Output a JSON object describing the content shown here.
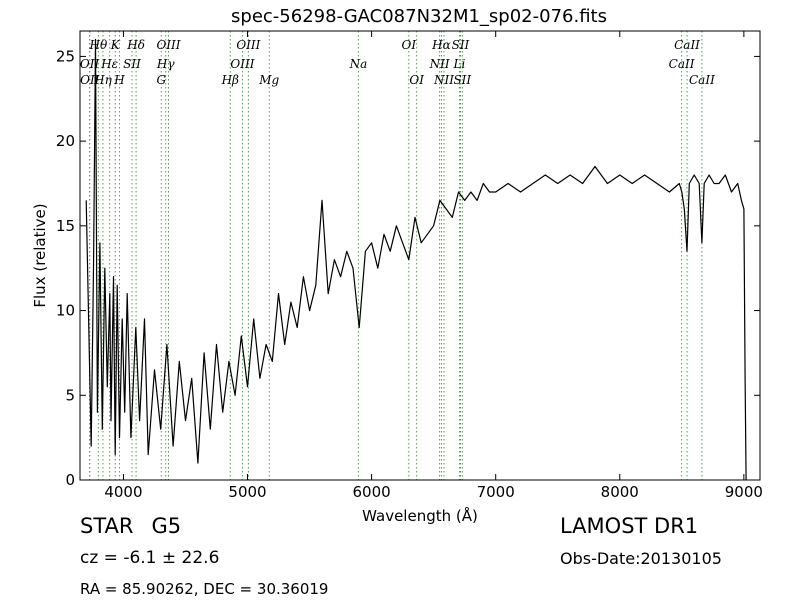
{
  "title": "spec-56298-GAC087N32M1_sp02-076.fits",
  "object_class": "STAR",
  "subclass": "G5",
  "survey": "LAMOST DR1",
  "cz_text": "cz = -6.1 ± 22.6",
  "obs_date": "Obs-Date:20130105",
  "radec": "RA = 85.90262, DEC = 30.36019",
  "chart_data": {
    "type": "line",
    "xlabel": "Wavelength (Å)",
    "ylabel": "Flux (relative)",
    "xlim": [
      3650,
      9130
    ],
    "ylim": [
      0,
      26.5
    ],
    "xticks": [
      4000,
      5000,
      6000,
      7000,
      8000,
      9000
    ],
    "yticks": [
      0,
      5,
      10,
      15,
      20,
      25
    ],
    "grid": false,
    "series": [
      {
        "color": "#000000",
        "x": [
          3700,
          3740,
          3760,
          3775,
          3790,
          3810,
          3830,
          3850,
          3870,
          3890,
          3900,
          3920,
          3934,
          3950,
          3968,
          3990,
          4010,
          4030,
          4060,
          4100,
          4130,
          4170,
          4200,
          4250,
          4300,
          4350,
          4400,
          4450,
          4500,
          4550,
          4600,
          4650,
          4700,
          4750,
          4800,
          4850,
          4900,
          4950,
          5000,
          5050,
          5100,
          5150,
          5200,
          5250,
          5300,
          5350,
          5400,
          5450,
          5500,
          5550,
          5600,
          5650,
          5700,
          5750,
          5800,
          5850,
          5900,
          5950,
          6000,
          6050,
          6100,
          6150,
          6200,
          6250,
          6300,
          6350,
          6400,
          6450,
          6500,
          6550,
          6600,
          6650,
          6700,
          6750,
          6800,
          6850,
          6900,
          6950,
          7000,
          7100,
          7200,
          7300,
          7400,
          7500,
          7600,
          7700,
          7800,
          7900,
          8000,
          8100,
          8200,
          8300,
          8400,
          8480,
          8500,
          8520,
          8542,
          8560,
          8600,
          8640,
          8662,
          8680,
          8720,
          8760,
          8800,
          8850,
          8900,
          8950,
          8980,
          9000,
          9010,
          9018
        ],
        "y": [
          16.5,
          2.0,
          13.0,
          26.0,
          4.0,
          14.0,
          3.0,
          12.5,
          5.5,
          11.0,
          3.5,
          12.0,
          1.5,
          11.5,
          2.5,
          9.5,
          4.0,
          11.0,
          2.5,
          9.0,
          3.5,
          9.5,
          1.5,
          6.5,
          3.0,
          8.0,
          2.0,
          7.0,
          3.5,
          6.0,
          1.0,
          7.5,
          3.0,
          8.0,
          4.0,
          7.0,
          5.0,
          8.5,
          5.5,
          9.5,
          6.0,
          8.0,
          7.0,
          11.0,
          8.0,
          10.5,
          9.0,
          12.0,
          10.0,
          11.5,
          16.5,
          11.0,
          13.0,
          12.0,
          13.5,
          12.5,
          9.0,
          13.5,
          14.0,
          12.5,
          14.5,
          13.5,
          15.0,
          14.0,
          13.0,
          15.5,
          14.0,
          14.5,
          15.0,
          16.5,
          16.0,
          15.5,
          17.0,
          16.5,
          17.0,
          16.5,
          17.5,
          17.0,
          17.0,
          17.5,
          17.0,
          17.5,
          18.0,
          17.5,
          18.0,
          17.5,
          18.5,
          17.5,
          18.0,
          17.5,
          18.0,
          17.5,
          17.0,
          17.5,
          17.0,
          16.0,
          13.5,
          17.5,
          18.0,
          17.5,
          14.0,
          17.5,
          18.0,
          17.5,
          17.5,
          18.0,
          17.0,
          17.5,
          16.5,
          16.0,
          6.0,
          0.0
        ]
      }
    ],
    "annotations": [
      {
        "label": "Hθ",
        "x": 3798,
        "row": 0
      },
      {
        "label": "OII",
        "x": 3727,
        "row": 1
      },
      {
        "label": "OII",
        "x": 3729,
        "row": 2
      },
      {
        "label": "Hη",
        "x": 3835,
        "row": 2
      },
      {
        "label": "K",
        "x": 3934,
        "row": 0
      },
      {
        "label": "Hε",
        "x": 3889,
        "row": 1
      },
      {
        "label": "SII",
        "x": 4069,
        "row": 1
      },
      {
        "label": "H",
        "x": 3968,
        "row": 2
      },
      {
        "label": "Hδ",
        "x": 4102,
        "row": 0
      },
      {
        "label": "OIII",
        "x": 4363,
        "row": 0
      },
      {
        "label": "Hγ",
        "x": 4341,
        "row": 1
      },
      {
        "label": "G",
        "x": 4305,
        "row": 2
      },
      {
        "label": "OIII",
        "x": 5007,
        "row": 0
      },
      {
        "label": "OIII",
        "x": 4959,
        "row": 1
      },
      {
        "label": "Hβ",
        "x": 4861,
        "row": 2
      },
      {
        "label": "Mg",
        "x": 5175,
        "row": 2
      },
      {
        "label": "Na",
        "x": 5894,
        "row": 1
      },
      {
        "label": "OI",
        "x": 6300,
        "row": 0
      },
      {
        "label": "OI",
        "x": 6363,
        "row": 2
      },
      {
        "label": "Hα",
        "x": 6563,
        "row": 0
      },
      {
        "label": "SII",
        "x": 6716,
        "row": 0
      },
      {
        "label": "NII",
        "x": 6548,
        "row": 1
      },
      {
        "label": "Li",
        "x": 6708,
        "row": 1
      },
      {
        "label": "NII",
        "x": 6583,
        "row": 2
      },
      {
        "label": "SII",
        "x": 6731,
        "row": 2
      },
      {
        "label": "CaII",
        "x": 8542,
        "row": 0
      },
      {
        "label": "CaII",
        "x": 8498,
        "row": 1
      },
      {
        "label": "CaII",
        "x": 8662,
        "row": 2
      }
    ]
  }
}
